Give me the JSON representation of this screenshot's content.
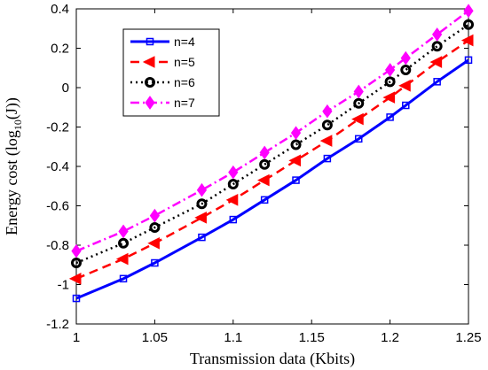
{
  "chart_data": {
    "type": "line",
    "xlabel": "Transmission data (Kbits)",
    "ylabel_prefix": "Energy cost (log",
    "ylabel_sub": "10",
    "ylabel_suffix": "(J))",
    "xlim": [
      1,
      1.25
    ],
    "ylim": [
      -1.2,
      0.4
    ],
    "x_ticks": [
      "1",
      "1.05",
      "1.1",
      "1.15",
      "1.2",
      "1.25"
    ],
    "y_ticks": [
      "0.4",
      "0.2",
      "0",
      "-0.2",
      "-0.4",
      "-0.6",
      "-0.8",
      "-1",
      "-1.2"
    ],
    "x_tick_values": [
      1,
      1.05,
      1.1,
      1.15,
      1.2,
      1.25
    ],
    "y_tick_values": [
      0.4,
      0.2,
      0,
      -0.2,
      -0.4,
      -0.6,
      -0.8,
      -1,
      -1.2
    ],
    "grid": false,
    "legend_position": "top-left",
    "x": [
      1,
      1.03,
      1.05,
      1.08,
      1.1,
      1.12,
      1.14,
      1.16,
      1.18,
      1.2,
      1.21,
      1.23,
      1.25
    ],
    "series": [
      {
        "name": "n=4",
        "color": "#0000ff",
        "dash": "solid",
        "marker": "square",
        "values": [
          -1.07,
          -0.97,
          -0.89,
          -0.76,
          -0.67,
          -0.57,
          -0.47,
          -0.36,
          -0.26,
          -0.15,
          -0.09,
          0.03,
          0.14
        ]
      },
      {
        "name": "n=5",
        "color": "#ff0000",
        "dash": "dashed",
        "marker": "triangle-left",
        "values": [
          -0.97,
          -0.87,
          -0.79,
          -0.66,
          -0.57,
          -0.47,
          -0.37,
          -0.27,
          -0.16,
          -0.05,
          0.01,
          0.13,
          0.24
        ]
      },
      {
        "name": "n=6",
        "color": "#000000",
        "dash": "dotted",
        "marker": "circle",
        "values": [
          -0.89,
          -0.79,
          -0.71,
          -0.59,
          -0.49,
          -0.39,
          -0.29,
          -0.19,
          -0.08,
          0.03,
          0.09,
          0.21,
          0.32
        ]
      },
      {
        "name": "n=7",
        "color": "#ff00ff",
        "dash": "dashdot",
        "marker": "diamond",
        "values": [
          -0.83,
          -0.73,
          -0.65,
          -0.52,
          -0.43,
          -0.33,
          -0.23,
          -0.12,
          -0.02,
          0.09,
          0.15,
          0.27,
          0.39
        ]
      }
    ]
  }
}
